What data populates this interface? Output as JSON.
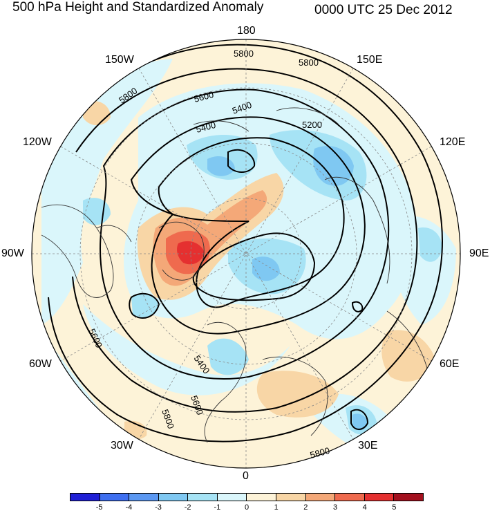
{
  "header": {
    "title": "500 hPa Height and Standardized Anomaly",
    "valid_time": "0000 UTC 25 Dec 2012"
  },
  "longitude_labels": {
    "lon_180": "180",
    "lon_150w": "150W",
    "lon_150e": "150E",
    "lon_120w": "120W",
    "lon_120e": "120E",
    "lon_90w": "90W",
    "lon_90e": "90E",
    "lon_60w": "60W",
    "lon_60e": "60E",
    "lon_30w": "30W",
    "lon_30e": "30E",
    "lon_0": "0"
  },
  "contour_labels": [
    "5800",
    "5800",
    "5800",
    "5600",
    "5400",
    "5400",
    "5200",
    "5600",
    "5400",
    "5600",
    "5800",
    "5800"
  ],
  "colorbar": {
    "colors": [
      "#1f1fd6",
      "#3e6ff0",
      "#5b98f2",
      "#7fc8f2",
      "#a6e3f5",
      "#daf6fb",
      "#fdf3d8",
      "#f8d6a6",
      "#f4a878",
      "#ef6a4e",
      "#e53030",
      "#a3101e"
    ],
    "tick_labels": [
      "-5",
      "-4",
      "-3",
      "-2",
      "-1",
      "0",
      "1",
      "2",
      "3",
      "4",
      "5"
    ]
  },
  "colors": {
    "background_neutral": "#fdf3d8",
    "contour": "#000000",
    "coastline": "#333333"
  }
}
